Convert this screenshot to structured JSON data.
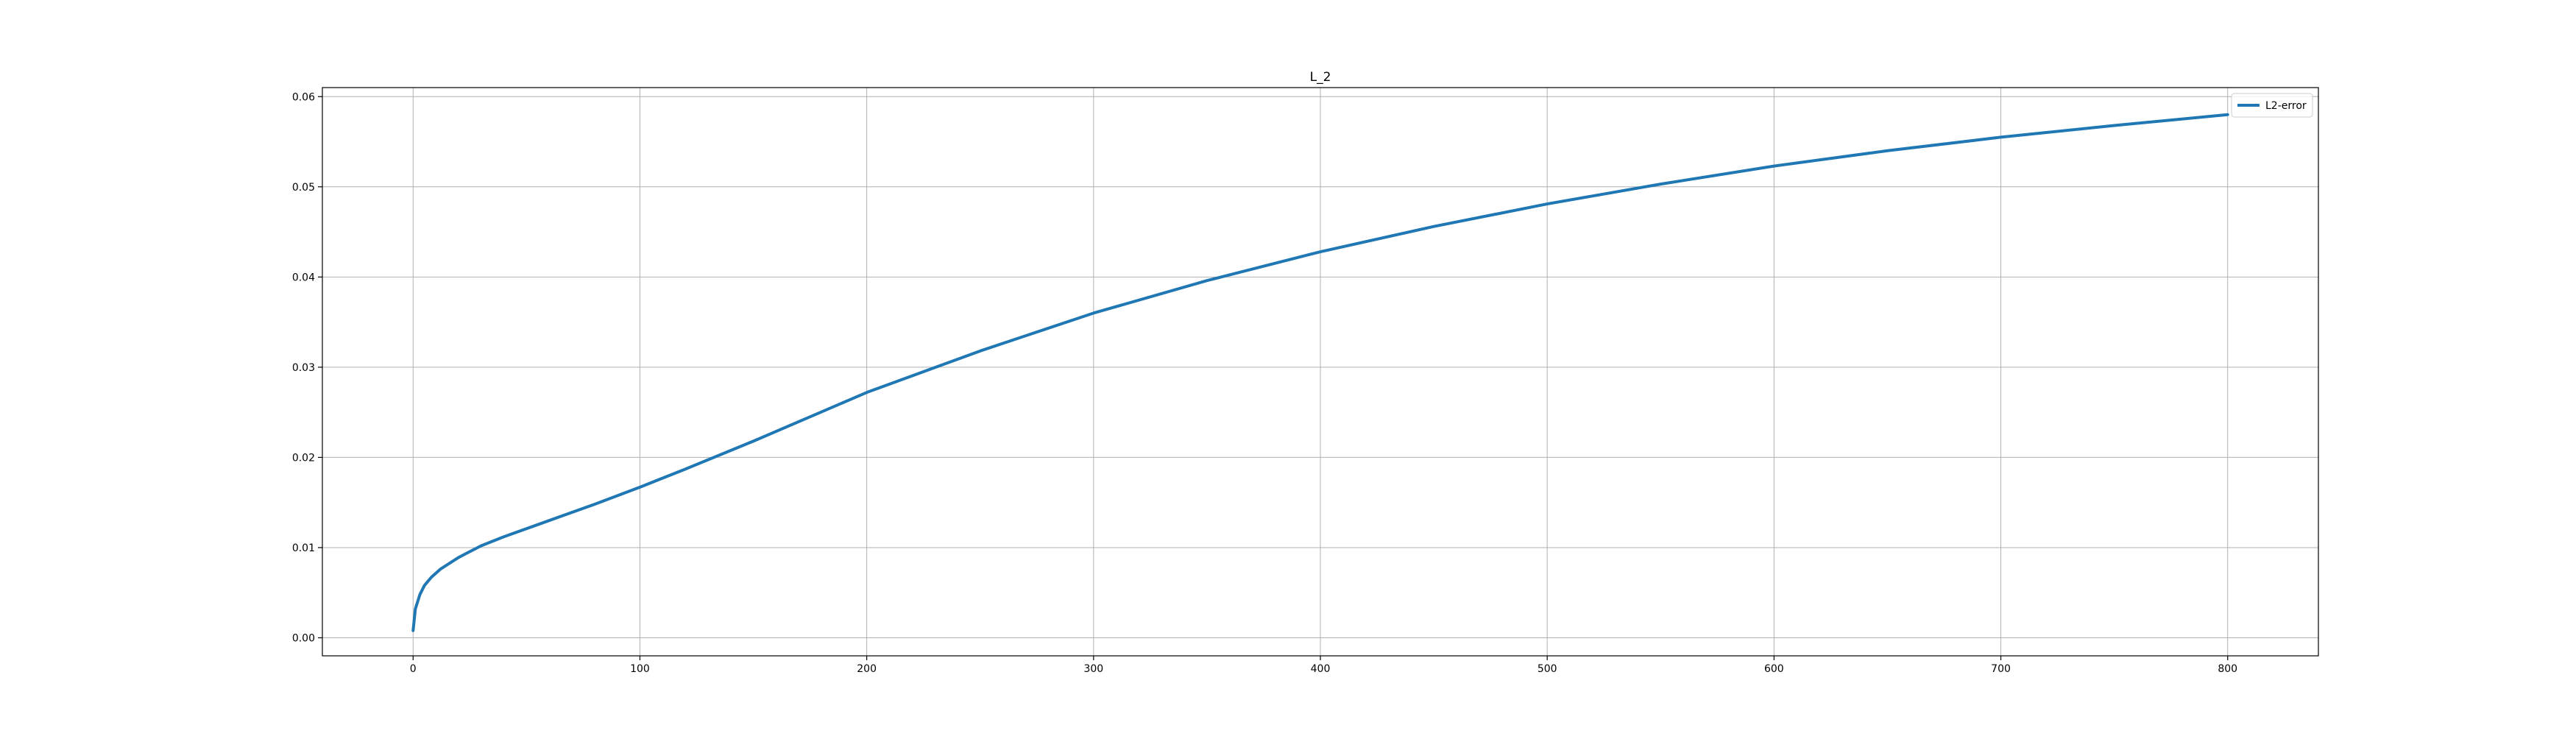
{
  "chart_data": {
    "type": "line",
    "title": "L_2",
    "xlabel": "",
    "ylabel": "",
    "xlim": [
      -40,
      840
    ],
    "ylim": [
      -0.002,
      0.061
    ],
    "xticks": [
      0,
      100,
      200,
      300,
      400,
      500,
      600,
      700,
      800
    ],
    "yticks": [
      0.0,
      0.01,
      0.02,
      0.03,
      0.04,
      0.05,
      0.06
    ],
    "xtick_labels": [
      "0",
      "100",
      "200",
      "300",
      "400",
      "500",
      "600",
      "700",
      "800"
    ],
    "ytick_labels": [
      "0.00",
      "0.01",
      "0.02",
      "0.03",
      "0.04",
      "0.05",
      "0.06"
    ],
    "grid": true,
    "legend_position": "top-right",
    "series": [
      {
        "name": "L2-error",
        "color": "#1f77b4",
        "x": [
          0,
          1,
          3,
          5,
          8,
          12,
          20,
          30,
          40,
          60,
          80,
          100,
          120,
          150,
          200,
          250,
          300,
          350,
          400,
          450,
          500,
          550,
          600,
          650,
          700,
          750,
          800
        ],
        "y": [
          0.0008,
          0.0032,
          0.0048,
          0.0058,
          0.0067,
          0.0076,
          0.0089,
          0.0102,
          0.0112,
          0.013,
          0.0148,
          0.0167,
          0.0187,
          0.0218,
          0.0272,
          0.0318,
          0.036,
          0.0396,
          0.0428,
          0.0456,
          0.0481,
          0.0503,
          0.0523,
          0.054,
          0.0555,
          0.0568,
          0.058
        ]
      }
    ]
  }
}
